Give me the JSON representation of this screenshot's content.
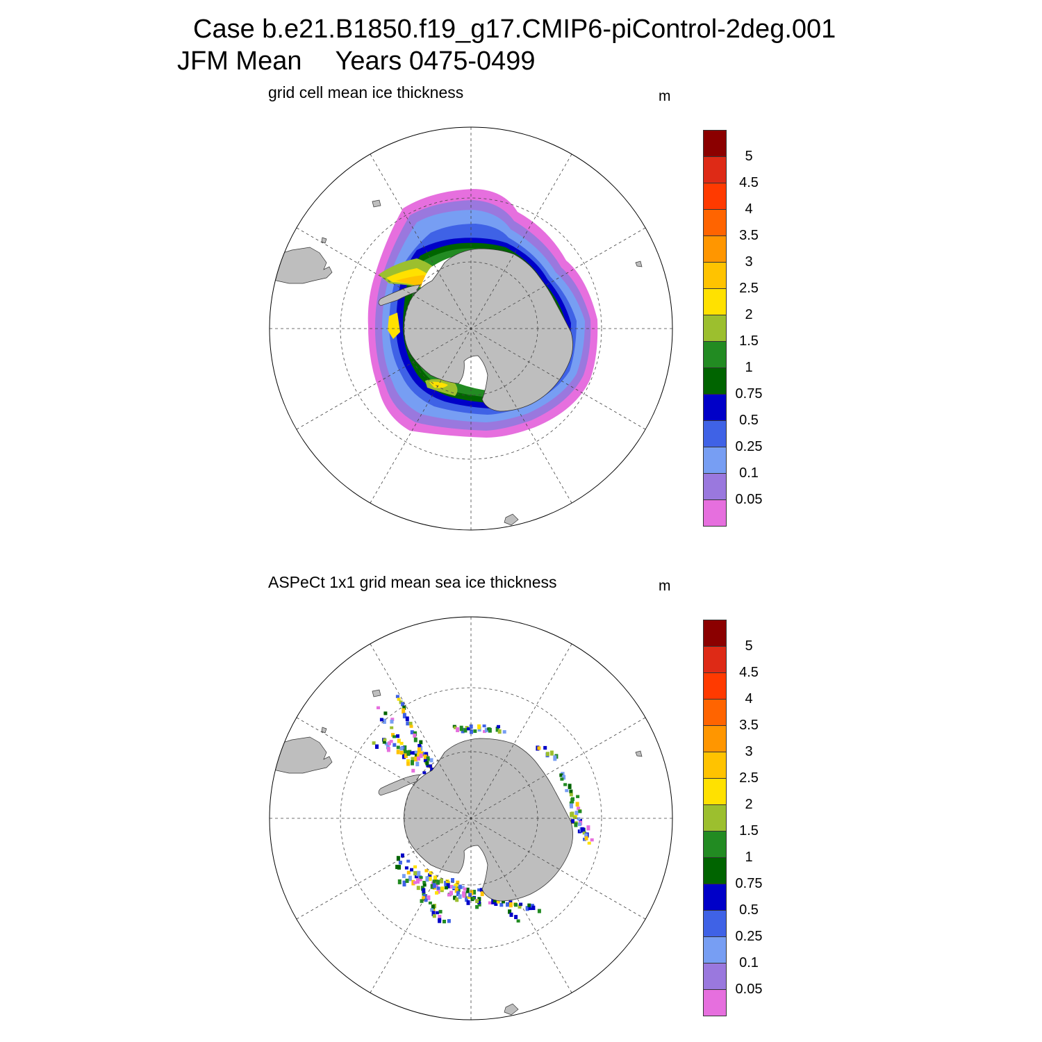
{
  "header": {
    "case_line": "Case b.e21.B1850.f19_g17.CMIP6-piControl-2deg.001",
    "season": "JFM Mean",
    "years": "Years 0475-0499"
  },
  "panels": [
    {
      "id": "model",
      "title": "grid cell mean ice thickness",
      "unit": "m"
    },
    {
      "id": "obs",
      "title": "ASPeCt 1x1 grid mean sea ice thickness",
      "unit": "m"
    }
  ],
  "colorbar": {
    "levels": [
      "0.05",
      "0.1",
      "0.25",
      "0.5",
      "0.75",
      "1",
      "1.5",
      "2",
      "2.5",
      "3",
      "3.5",
      "4",
      "4.5",
      "5"
    ],
    "colors": [
      "#e66fde",
      "#9a78de",
      "#779ef3",
      "#3f62e6",
      "#0000c8",
      "#006400",
      "#228b22",
      "#9cbf2e",
      "#ffe100",
      "#ffc300",
      "#ff9600",
      "#ff6400",
      "#ff3a00",
      "#de2a16",
      "#8b0000"
    ]
  },
  "map_style": {
    "land": "#bebebe",
    "ocean": "#ffffff",
    "grid_line": "#444444"
  }
}
